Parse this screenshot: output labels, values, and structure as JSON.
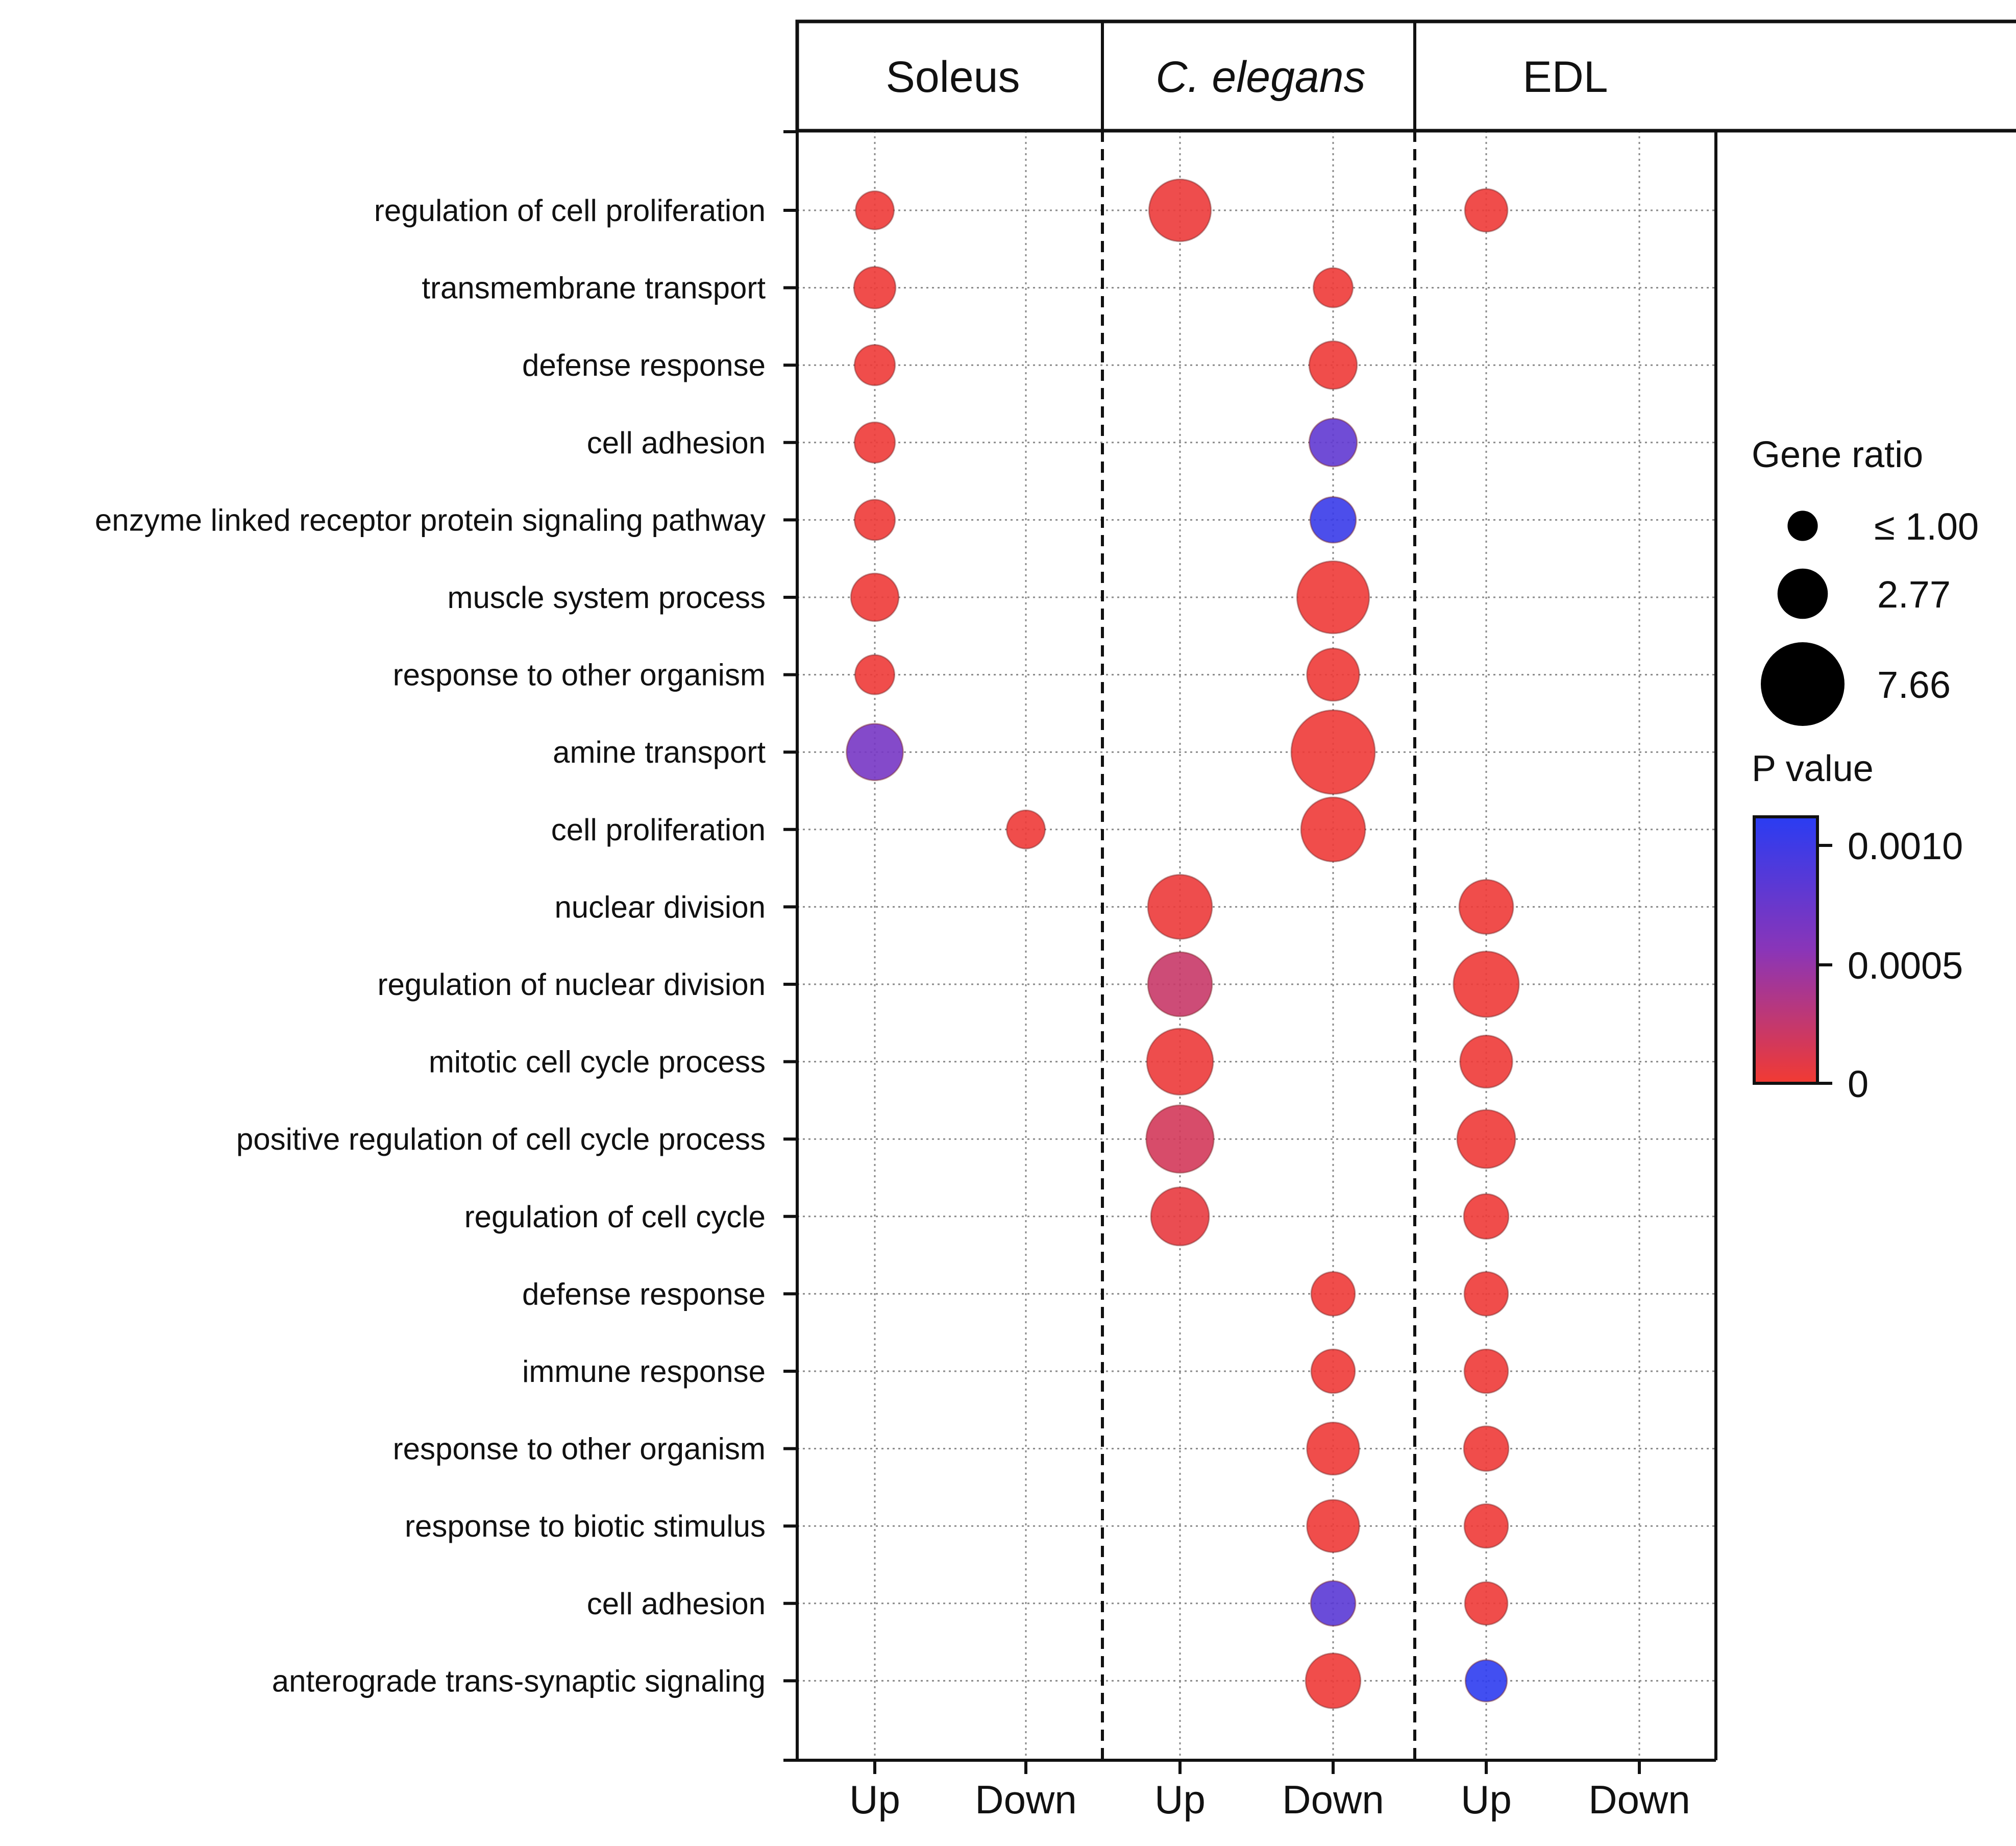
{
  "chart_data": {
    "type": "bubble-matrix",
    "panels": [
      {
        "name": "Soleus",
        "italic": false
      },
      {
        "name": "C. elegans",
        "italic": true
      },
      {
        "name": "EDL",
        "italic": false
      }
    ],
    "directions": [
      "Up",
      "Down"
    ],
    "rows": [
      "regulation of cell proliferation",
      "transmembrane transport",
      "defense response",
      "cell adhesion",
      "enzyme linked receptor protein signaling pathway",
      "muscle system process",
      "response to other organism",
      "amine transport",
      "cell proliferation",
      "nuclear division",
      "regulation of nuclear division",
      "mitotic cell cycle process",
      "positive regulation of cell cycle process",
      "regulation of cell cycle",
      "defense response",
      "immune response",
      "response to other organism",
      "response to biotic stimulus",
      "cell adhesion",
      "anterograde trans-synaptic signaling"
    ],
    "points": [
      {
        "row": 0,
        "col": 0,
        "ratio": 1.6,
        "p": 2e-05
      },
      {
        "row": 0,
        "col": 2,
        "ratio": 4.2,
        "p": 3e-05
      },
      {
        "row": 0,
        "col": 4,
        "ratio": 2.0,
        "p": 2e-05
      },
      {
        "row": 1,
        "col": 0,
        "ratio": 1.9,
        "p": 2e-05
      },
      {
        "row": 1,
        "col": 3,
        "ratio": 1.7,
        "p": 2e-05
      },
      {
        "row": 2,
        "col": 0,
        "ratio": 1.8,
        "p": 2e-05
      },
      {
        "row": 2,
        "col": 3,
        "ratio": 2.5,
        "p": 2e-05
      },
      {
        "row": 3,
        "col": 0,
        "ratio": 1.8,
        "p": 2e-05
      },
      {
        "row": 3,
        "col": 3,
        "ratio": 2.5,
        "p": 0.00072
      },
      {
        "row": 4,
        "col": 0,
        "ratio": 1.8,
        "p": 2e-05
      },
      {
        "row": 4,
        "col": 3,
        "ratio": 2.3,
        "p": 0.00092
      },
      {
        "row": 5,
        "col": 0,
        "ratio": 2.5,
        "p": 2e-05
      },
      {
        "row": 5,
        "col": 3,
        "ratio": 5.7,
        "p": 2e-05
      },
      {
        "row": 6,
        "col": 0,
        "ratio": 1.7,
        "p": 2e-05
      },
      {
        "row": 6,
        "col": 3,
        "ratio": 3.0,
        "p": 2e-05
      },
      {
        "row": 7,
        "col": 0,
        "ratio": 3.5,
        "p": 0.0006
      },
      {
        "row": 7,
        "col": 3,
        "ratio": 7.66,
        "p": 2e-05
      },
      {
        "row": 8,
        "col": 1,
        "ratio": 1.6,
        "p": 2e-05
      },
      {
        "row": 8,
        "col": 3,
        "ratio": 4.5,
        "p": 2e-05
      },
      {
        "row": 9,
        "col": 2,
        "ratio": 4.5,
        "p": 3e-05
      },
      {
        "row": 9,
        "col": 4,
        "ratio": 3.2,
        "p": 2e-05
      },
      {
        "row": 10,
        "col": 2,
        "ratio": 4.5,
        "p": 0.0002
      },
      {
        "row": 10,
        "col": 4,
        "ratio": 4.7,
        "p": 2e-05
      },
      {
        "row": 11,
        "col": 2,
        "ratio": 4.8,
        "p": 3e-05
      },
      {
        "row": 11,
        "col": 4,
        "ratio": 3.0,
        "p": 2e-05
      },
      {
        "row": 12,
        "col": 2,
        "ratio": 5.0,
        "p": 0.00015
      },
      {
        "row": 12,
        "col": 4,
        "ratio": 3.7,
        "p": 2e-05
      },
      {
        "row": 13,
        "col": 2,
        "ratio": 3.7,
        "p": 5e-05
      },
      {
        "row": 13,
        "col": 4,
        "ratio": 2.2,
        "p": 2e-05
      },
      {
        "row": 14,
        "col": 3,
        "ratio": 2.1,
        "p": 2e-05
      },
      {
        "row": 14,
        "col": 4,
        "ratio": 2.1,
        "p": 2e-05
      },
      {
        "row": 15,
        "col": 3,
        "ratio": 2.1,
        "p": 2e-05
      },
      {
        "row": 15,
        "col": 4,
        "ratio": 2.1,
        "p": 2e-05
      },
      {
        "row": 16,
        "col": 3,
        "ratio": 3.0,
        "p": 2e-05
      },
      {
        "row": 16,
        "col": 4,
        "ratio": 2.2,
        "p": 2e-05
      },
      {
        "row": 17,
        "col": 3,
        "ratio": 3.0,
        "p": 2e-05
      },
      {
        "row": 17,
        "col": 4,
        "ratio": 2.1,
        "p": 2e-05
      },
      {
        "row": 18,
        "col": 3,
        "ratio": 2.2,
        "p": 0.00075
      },
      {
        "row": 18,
        "col": 4,
        "ratio": 2.0,
        "p": 2e-05
      },
      {
        "row": 19,
        "col": 3,
        "ratio": 3.3,
        "p": 2e-05
      },
      {
        "row": 19,
        "col": 4,
        "ratio": 1.9,
        "p": 0.00098
      }
    ],
    "legend": {
      "size_title": "Gene ratio",
      "size_labels": [
        "≤ 1.00",
        "2.77",
        "7.66"
      ],
      "size_values": [
        1.0,
        2.77,
        7.66
      ],
      "color_title": "P value",
      "color_labels": [
        "0.0010",
        "0.0005",
        "0"
      ],
      "color_min": 0,
      "color_max": 0.001,
      "color_low": "#f23a32",
      "color_mid": "#8a35b8",
      "color_high": "#2a3cf2"
    }
  }
}
